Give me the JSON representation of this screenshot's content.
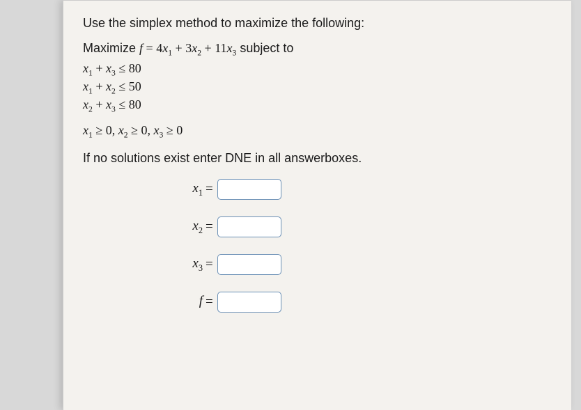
{
  "intro": "Use the simplex method to maximize the following:",
  "objective": {
    "lead": "Maximize ",
    "f": "f",
    "eq": " = ",
    "c1": "4",
    "v1": "x",
    "s1": "1",
    "plus1": " + ",
    "c2": "3",
    "v2": "x",
    "s2": "2",
    "plus2": " + ",
    "c3": "11",
    "v3": "x",
    "s3": "3",
    "tail": " subject to"
  },
  "constraints": [
    {
      "t1v": "x",
      "t1s": "1",
      "op": " + ",
      "t2v": "x",
      "t2s": "3",
      "rel": " ≤ ",
      "rhs": "80"
    },
    {
      "t1v": "x",
      "t1s": "1",
      "op": " + ",
      "t2v": "x",
      "t2s": "2",
      "rel": " ≤ ",
      "rhs": "50"
    },
    {
      "t1v": "x",
      "t1s": "2",
      "op": " + ",
      "t2v": "x",
      "t2s": "3",
      "rel": " ≤ ",
      "rhs": "80"
    }
  ],
  "nonneg": {
    "p1v": "x",
    "p1s": "1",
    "p1r": " ≥ 0, ",
    "p2v": "x",
    "p2s": "2",
    "p2r": " ≥ 0, ",
    "p3v": "x",
    "p3s": "3",
    "p3r": " ≥ 0"
  },
  "prompt": "If no solutions exist enter DNE in all answerboxes.",
  "answers": [
    {
      "labelv": "x",
      "labels": "1",
      "eq": "="
    },
    {
      "labelv": "x",
      "labels": "2",
      "eq": "="
    },
    {
      "labelv": "x",
      "labels": "3",
      "eq": "="
    },
    {
      "labelv": "f",
      "labels": "",
      "eq": "="
    }
  ],
  "style": {
    "input_border": "#6a8fb5",
    "bg": "#f4f2ee"
  }
}
